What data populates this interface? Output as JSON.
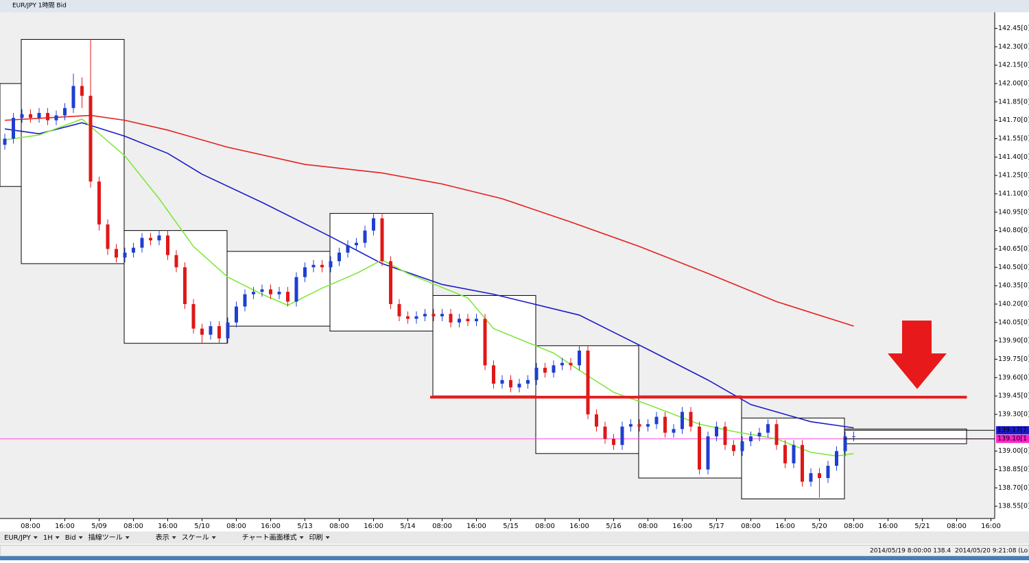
{
  "window_title": "EUR/JPY 1時間 Bid",
  "toolbar": [
    "EUR/JPY",
    "1H",
    "Bid",
    "描線ツール",
    "表示",
    "スケール",
    "チャート画面様式",
    "印刷"
  ],
  "status": [
    "2014/05/19 8:00:00 138.4",
    "2014/05/20 9:21:08 (Lo"
  ],
  "chart_data": {
    "type": "candlestick",
    "xlim": [
      -0.56,
      115.44
    ],
    "ylim": [
      138.45,
      142.57
    ],
    "xticks": [
      {
        "value": 3,
        "label": "08:00"
      },
      {
        "value": 7,
        "label": "16:00"
      },
      {
        "value": 11,
        "label": "5/09"
      },
      {
        "value": 15,
        "label": "08:00"
      },
      {
        "value": 19,
        "label": "16:00"
      },
      {
        "value": 23,
        "label": "5/10"
      },
      {
        "value": 27,
        "label": "08:00"
      },
      {
        "value": 31,
        "label": "16:00"
      },
      {
        "value": 35,
        "label": "5/13"
      },
      {
        "value": 39,
        "label": "08:00"
      },
      {
        "value": 43,
        "label": "16:00"
      },
      {
        "value": 47,
        "label": "5/14"
      },
      {
        "value": 51,
        "label": "08:00"
      },
      {
        "value": 55,
        "label": "16:00"
      },
      {
        "value": 59,
        "label": "5/15"
      },
      {
        "value": 63,
        "label": "08:00"
      },
      {
        "value": 67,
        "label": "16:00"
      },
      {
        "value": 71,
        "label": "5/16"
      },
      {
        "value": 75,
        "label": "08:00"
      },
      {
        "value": 79,
        "label": "16:00"
      },
      {
        "value": 83,
        "label": "5/17"
      },
      {
        "value": 87,
        "label": "08:00"
      },
      {
        "value": 91,
        "label": "16:00"
      },
      {
        "value": 95,
        "label": "5/20"
      },
      {
        "value": 99,
        "label": "08:00"
      },
      {
        "value": 103,
        "label": "16:00"
      },
      {
        "value": 107,
        "label": "5/21"
      },
      {
        "value": 111,
        "label": "08:00"
      },
      {
        "value": 115,
        "label": "16:00"
      }
    ],
    "yticks": [
      {
        "value": 142.45,
        "label": "142.45[0]"
      },
      {
        "value": 142.3,
        "label": "142.30[0]"
      },
      {
        "value": 142.15,
        "label": "142.15[0]"
      },
      {
        "value": 142,
        "label": "142.00[0]"
      },
      {
        "value": 141.85,
        "label": "141.85[0]"
      },
      {
        "value": 141.7,
        "label": "141.70[0]"
      },
      {
        "value": 141.55,
        "label": "141.55[0]"
      },
      {
        "value": 141.4,
        "label": "141.40[0]"
      },
      {
        "value": 141.25,
        "label": "141.25[0]"
      },
      {
        "value": 141.1,
        "label": "141.10[0]"
      },
      {
        "value": 140.95,
        "label": "140.95[0]"
      },
      {
        "value": 140.8,
        "label": "140.80[0]"
      },
      {
        "value": 140.65,
        "label": "140.65[0]"
      },
      {
        "value": 140.5,
        "label": "140.50[0]"
      },
      {
        "value": 140.35,
        "label": "140.35[0]"
      },
      {
        "value": 140.2,
        "label": "140.20[0]"
      },
      {
        "value": 140.05,
        "label": "140.05[0]"
      },
      {
        "value": 139.9,
        "label": "139.90[0]"
      },
      {
        "value": 139.75,
        "label": "139.75[0]"
      },
      {
        "value": 139.6,
        "label": "139.60[0]"
      },
      {
        "value": 139.45,
        "label": "139.45[0]"
      },
      {
        "value": 139.3,
        "label": "139.30[0]"
      },
      {
        "value": 139,
        "label": "139.00[0]"
      },
      {
        "value": 138.85,
        "label": "138.85[0]"
      },
      {
        "value": 138.7,
        "label": "138.70[0]"
      },
      {
        "value": 138.55,
        "label": "138.55[0]"
      }
    ],
    "up_color": "#1f3fd0",
    "down_color": "#e01818",
    "candles": [
      [
        141.5,
        141.59,
        141.46,
        141.55
      ],
      [
        141.55,
        141.76,
        141.51,
        141.72
      ],
      [
        141.72,
        141.79,
        141.68,
        141.75
      ],
      [
        141.75,
        141.79,
        141.68,
        141.72
      ],
      [
        141.72,
        141.8,
        141.68,
        141.76
      ],
      [
        141.76,
        141.8,
        141.66,
        141.7
      ],
      [
        141.7,
        141.78,
        141.66,
        141.74
      ],
      [
        141.74,
        141.84,
        141.7,
        141.8
      ],
      [
        141.8,
        142.08,
        141.76,
        141.98
      ],
      [
        141.98,
        142.05,
        141.8,
        141.9
      ],
      [
        141.9,
        142.36,
        141.15,
        141.2
      ],
      [
        141.2,
        141.24,
        140.8,
        140.85
      ],
      [
        140.85,
        140.89,
        140.6,
        140.65
      ],
      [
        140.65,
        140.69,
        140.54,
        140.58
      ],
      [
        140.58,
        140.66,
        140.54,
        140.62
      ],
      [
        140.62,
        140.7,
        140.58,
        140.66
      ],
      [
        140.66,
        140.78,
        140.62,
        140.74
      ],
      [
        140.74,
        140.78,
        140.68,
        140.72
      ],
      [
        140.72,
        140.8,
        140.68,
        140.76
      ],
      [
        140.76,
        140.8,
        140.56,
        140.6
      ],
      [
        140.6,
        140.64,
        140.46,
        140.5
      ],
      [
        140.5,
        140.54,
        140.16,
        140.2
      ],
      [
        140.2,
        140.24,
        139.96,
        140
      ],
      [
        140,
        140.04,
        139.88,
        139.95
      ],
      [
        139.95,
        140.06,
        139.91,
        140.02
      ],
      [
        140.02,
        140.06,
        139.88,
        139.92
      ],
      [
        139.92,
        140.09,
        139.88,
        140.05
      ],
      [
        140.05,
        140.22,
        140.01,
        140.18
      ],
      [
        140.18,
        140.32,
        140.14,
        140.28
      ],
      [
        140.28,
        140.34,
        140.24,
        140.3
      ],
      [
        140.3,
        140.36,
        140.26,
        140.32
      ],
      [
        140.32,
        140.36,
        140.24,
        140.28
      ],
      [
        140.28,
        140.34,
        140.24,
        140.3
      ],
      [
        140.3,
        140.34,
        140.18,
        140.22
      ],
      [
        140.22,
        140.46,
        140.18,
        140.42
      ],
      [
        140.42,
        140.54,
        140.38,
        140.5
      ],
      [
        140.5,
        140.56,
        140.46,
        140.52
      ],
      [
        140.52,
        140.56,
        140.46,
        140.5
      ],
      [
        140.5,
        140.59,
        140.46,
        140.55
      ],
      [
        140.55,
        140.66,
        140.51,
        140.62
      ],
      [
        140.62,
        140.72,
        140.58,
        140.68
      ],
      [
        140.68,
        140.74,
        140.64,
        140.7
      ],
      [
        140.7,
        140.84,
        140.66,
        140.8
      ],
      [
        140.8,
        140.94,
        140.76,
        140.9
      ],
      [
        140.9,
        140.94,
        140.51,
        140.55
      ],
      [
        140.55,
        140.59,
        140.16,
        140.2
      ],
      [
        140.2,
        140.24,
        140.06,
        140.1
      ],
      [
        140.1,
        140.14,
        140.04,
        140.08
      ],
      [
        140.08,
        140.14,
        140.04,
        140.1
      ],
      [
        140.1,
        140.16,
        140.06,
        140.12
      ],
      [
        140.12,
        140.16,
        140.06,
        140.1
      ],
      [
        140.1,
        140.16,
        140.06,
        140.12
      ],
      [
        140.12,
        140.16,
        140.01,
        140.05
      ],
      [
        140.05,
        140.12,
        140.01,
        140.08
      ],
      [
        140.08,
        140.12,
        140.02,
        140.06
      ],
      [
        140.06,
        140.12,
        140.02,
        140.08
      ],
      [
        140.08,
        140.12,
        139.66,
        139.7
      ],
      [
        139.7,
        139.74,
        139.51,
        139.55
      ],
      [
        139.55,
        139.62,
        139.51,
        139.58
      ],
      [
        139.58,
        139.62,
        139.48,
        139.52
      ],
      [
        139.52,
        139.59,
        139.48,
        139.55
      ],
      [
        139.55,
        139.62,
        139.51,
        139.58
      ],
      [
        139.58,
        139.72,
        139.54,
        139.68
      ],
      [
        139.68,
        139.72,
        139.6,
        139.64
      ],
      [
        139.64,
        139.74,
        139.6,
        139.7
      ],
      [
        139.7,
        139.76,
        139.66,
        139.72
      ],
      [
        139.72,
        139.76,
        139.66,
        139.7
      ],
      [
        139.7,
        139.86,
        139.66,
        139.82
      ],
      [
        139.82,
        139.86,
        139.26,
        139.3
      ],
      [
        139.3,
        139.34,
        139.16,
        139.2
      ],
      [
        139.2,
        139.24,
        139.06,
        139.1
      ],
      [
        139.1,
        139.14,
        139.01,
        139.05
      ],
      [
        139.05,
        139.24,
        139.01,
        139.2
      ],
      [
        139.2,
        139.26,
        139.16,
        139.22
      ],
      [
        139.22,
        139.26,
        139.16,
        139.2
      ],
      [
        139.2,
        139.26,
        139.16,
        139.22
      ],
      [
        139.22,
        139.32,
        139.18,
        139.28
      ],
      [
        139.28,
        139.32,
        139.11,
        139.15
      ],
      [
        139.15,
        139.22,
        139.11,
        139.18
      ],
      [
        139.18,
        139.36,
        139.14,
        139.32
      ],
      [
        139.32,
        139.36,
        139.16,
        139.2
      ],
      [
        139.2,
        139.24,
        138.81,
        138.85
      ],
      [
        138.85,
        139.16,
        138.81,
        139.12
      ],
      [
        139.12,
        139.24,
        139.08,
        139.2
      ],
      [
        139.2,
        139.24,
        139.01,
        139.05
      ],
      [
        139.05,
        139.09,
        138.96,
        139
      ],
      [
        139,
        139.12,
        138.96,
        139.08
      ],
      [
        139.08,
        139.16,
        139.04,
        139.12
      ],
      [
        139.12,
        139.19,
        139.08,
        139.15
      ],
      [
        139.15,
        139.26,
        139.11,
        139.22
      ],
      [
        139.22,
        139.26,
        139.01,
        139.05
      ],
      [
        139.05,
        139.09,
        138.86,
        138.9
      ],
      [
        138.9,
        139.09,
        138.86,
        139.05
      ],
      [
        139.05,
        139.09,
        138.71,
        138.75
      ],
      [
        138.75,
        138.86,
        138.71,
        138.82
      ],
      [
        138.82,
        138.86,
        138.62,
        138.78
      ],
      [
        138.78,
        138.92,
        138.74,
        138.88
      ],
      [
        138.88,
        139.04,
        138.84,
        139
      ],
      [
        139,
        139.16,
        138.96,
        139.12
      ],
      [
        139.12,
        139.16,
        139.08,
        139.12
      ]
    ],
    "series": [
      {
        "color": "#e41e1e",
        "x": [
          0,
          10,
          14,
          19,
          26,
          35,
          44,
          51,
          58,
          66,
          74,
          82,
          90,
          99
        ],
        "values": [
          141.7,
          141.74,
          141.7,
          141.62,
          141.48,
          141.34,
          141.27,
          141.18,
          141.06,
          140.87,
          140.67,
          140.45,
          140.22,
          140.02
        ]
      },
      {
        "color": "#1a1ac8",
        "x": [
          0,
          4,
          9,
          14,
          19,
          23,
          30,
          38,
          44,
          51,
          57,
          67,
          75,
          82,
          87,
          94,
          99
        ],
        "values": [
          141.63,
          141.59,
          141.68,
          141.57,
          141.43,
          141.26,
          141.03,
          140.75,
          140.53,
          140.36,
          140.28,
          140.11,
          139.83,
          139.58,
          139.38,
          139.24,
          139.19
        ]
      },
      {
        "color": "#7ee83a",
        "x": [
          0,
          4,
          9,
          11,
          14,
          18,
          22,
          26,
          30,
          33,
          37,
          41,
          44,
          47,
          54,
          57,
          64,
          67,
          71,
          75,
          81,
          85,
          90,
          94,
          97,
          99
        ],
        "values": [
          141.54,
          141.58,
          141.71,
          141.59,
          141.41,
          141.06,
          140.67,
          140.42,
          140.28,
          140.19,
          140.33,
          140.45,
          140.56,
          140.45,
          140.25,
          140,
          139.8,
          139.66,
          139.48,
          139.38,
          139.22,
          139.16,
          139.1,
          138.99,
          138.96,
          138.98
        ]
      }
    ],
    "day_ranges": [
      {
        "x": [
          -0.56,
          1.92
        ],
        "high": 142,
        "low": 141.16
      },
      {
        "x": [
          1.92,
          13.92
        ],
        "high": 142.36,
        "low": 140.53
      },
      {
        "x": [
          13.92,
          25.92
        ],
        "high": 140.8,
        "low": 139.88
      },
      {
        "x": [
          25.92,
          37.92
        ],
        "high": 140.63,
        "low": 140.02
      },
      {
        "x": [
          37.92,
          49.92
        ],
        "high": 140.94,
        "low": 139.98
      },
      {
        "x": [
          49.92,
          61.92
        ],
        "high": 140.27,
        "low": 139.45
      },
      {
        "x": [
          61.92,
          73.92
        ],
        "high": 139.86,
        "low": 138.98
      },
      {
        "x": [
          73.92,
          85.92
        ],
        "high": 139.45,
        "low": 138.78
      },
      {
        "x": [
          85.92,
          97.92
        ],
        "high": 139.27,
        "low": 138.61
      },
      {
        "x": [
          97.92,
          112.16
        ],
        "high": 139.18,
        "low": 139.06
      }
    ],
    "support_line": {
      "value": 139.44,
      "x": [
        49.6,
        112.2
      ],
      "color": "#e41e1e"
    },
    "bid_line": {
      "value": 139.1,
      "color": "#ff44dd"
    },
    "price_labels": [
      {
        "value": 139.17,
        "label": "139.17[7",
        "color": "#1a1ac8"
      },
      {
        "value": 139.1,
        "label": "139.10[1",
        "color": "#ff22cc"
      }
    ]
  }
}
